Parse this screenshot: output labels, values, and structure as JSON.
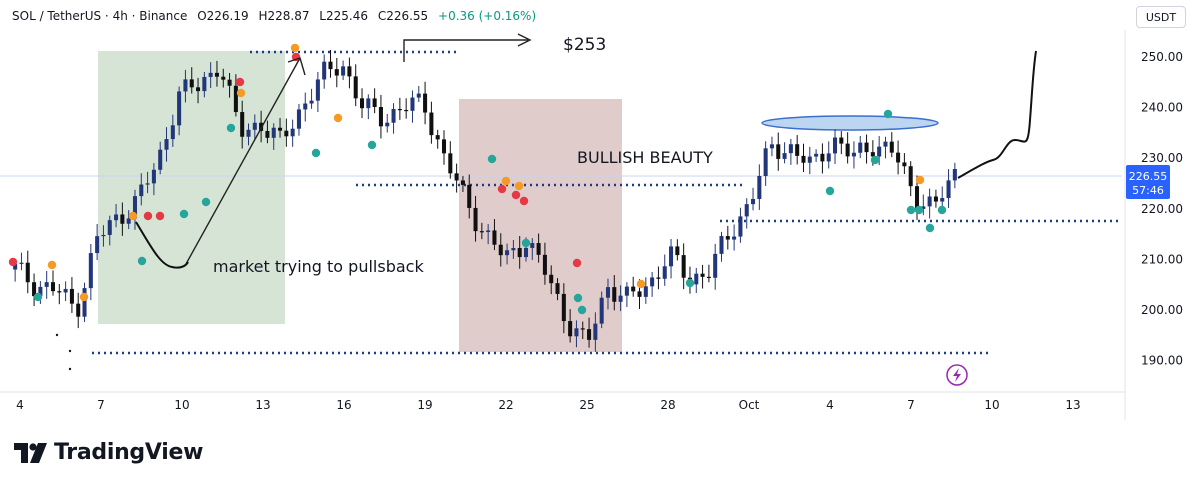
{
  "header": {
    "symbol": "SOL / TetherUS · 4h · Binance",
    "open": "O226.19",
    "high": "H228.87",
    "low": "L225.46",
    "close": "C226.55",
    "change": "+0.36 (+0.16%)"
  },
  "currency_label": "USDT",
  "price_tag": {
    "price": "226.55",
    "countdown": "57:46",
    "color": "#2962ff"
  },
  "brand": {
    "name": "TradingView"
  },
  "annotations": {
    "target": "$253",
    "pullback_note": "market trying to pullsback",
    "bullish_note": "BULLISH BEAUTY"
  },
  "colors": {
    "up_candle": "#22367a",
    "down_candle": "#101010",
    "dotted_line": "#1f3a8a",
    "green_zone": "#cfdfcf",
    "red_zone": "#dcc3c3",
    "ellipse_fill": "#bcd6f2",
    "marker_green": "#26a69a",
    "marker_orange": "#f59a23",
    "marker_red": "#e53946"
  },
  "chart_data": {
    "type": "candlestick",
    "title": "",
    "xlabel": "",
    "ylabel": "",
    "y_axis_ticks": [
      "250.00",
      "240.00",
      "230.00",
      "220.00",
      "210.00",
      "200.00",
      "190.00"
    ],
    "ylim": [
      185,
      255
    ],
    "x_axis_ticks": [
      "4",
      "7",
      "10",
      "13",
      "16",
      "19",
      "22",
      "25",
      "28",
      "Oct",
      "4",
      "7",
      "10",
      "13"
    ],
    "grid": false,
    "last_price": 226.55,
    "key_levels": [
      {
        "name": "top",
        "value": 251.0
      },
      {
        "name": "mid",
        "value": 224.8
      },
      {
        "name": "support",
        "value": 217.3
      },
      {
        "name": "bottom",
        "value": 191.5
      }
    ],
    "series": [
      {
        "name": "SOL/USDT",
        "approx_close_path": [
          [
            0,
            208
          ],
          [
            2,
            205
          ],
          [
            4,
            204
          ],
          [
            6,
            200
          ],
          [
            8,
            214
          ],
          [
            10,
            218
          ],
          [
            12,
            222
          ],
          [
            14,
            229
          ],
          [
            16,
            243
          ],
          [
            18,
            244
          ],
          [
            20,
            249
          ],
          [
            22,
            235
          ],
          [
            24,
            237
          ],
          [
            26,
            233
          ],
          [
            28,
            240
          ],
          [
            30,
            246
          ],
          [
            32,
            249
          ],
          [
            34,
            240
          ],
          [
            36,
            238
          ],
          [
            38,
            240
          ],
          [
            40,
            241
          ],
          [
            42,
            230
          ],
          [
            44,
            222
          ],
          [
            46,
            215
          ],
          [
            48,
            210
          ],
          [
            50,
            214
          ],
          [
            52,
            207
          ],
          [
            54,
            198
          ],
          [
            56,
            193
          ],
          [
            58,
            205
          ],
          [
            60,
            202
          ],
          [
            62,
            205
          ],
          [
            64,
            211
          ],
          [
            66,
            206
          ],
          [
            68,
            208
          ],
          [
            70,
            215
          ],
          [
            72,
            222
          ],
          [
            74,
            232
          ],
          [
            76,
            232
          ],
          [
            78,
            228
          ],
          [
            80,
            234
          ],
          [
            82,
            230
          ],
          [
            84,
            233
          ],
          [
            86,
            231
          ],
          [
            88,
            223
          ],
          [
            90,
            220
          ],
          [
            92,
            227
          ]
        ]
      }
    ]
  }
}
